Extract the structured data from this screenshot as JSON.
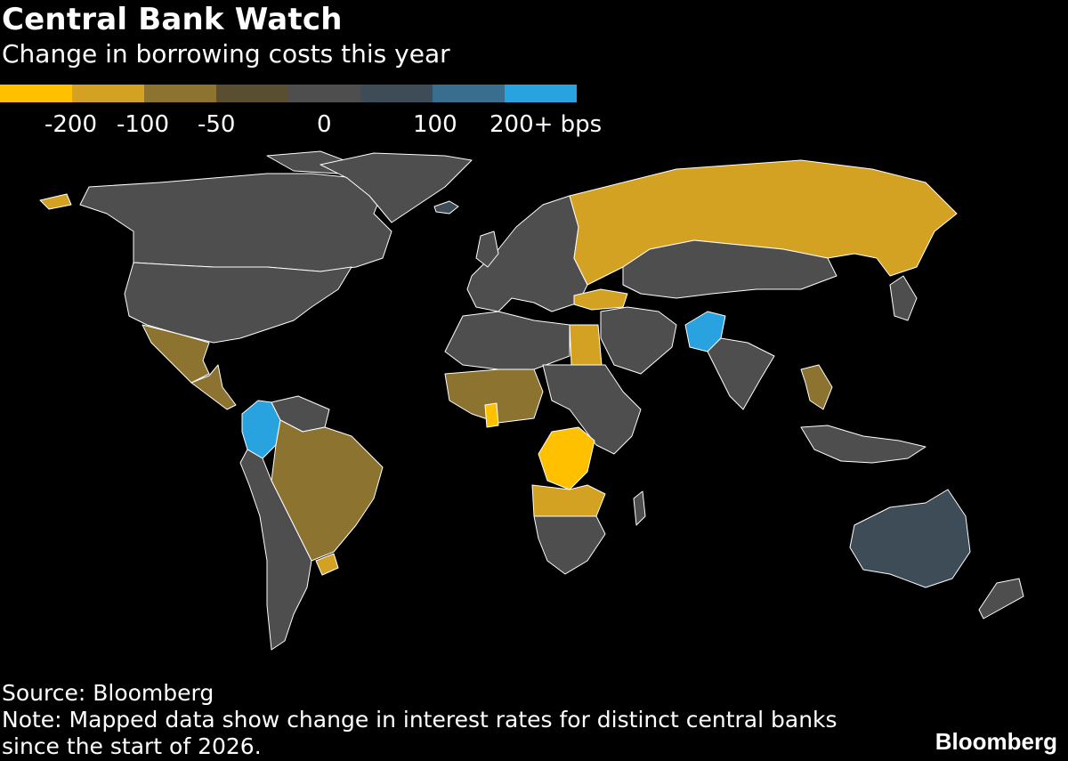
{
  "title": "Central Bank Watch",
  "subtitle": "Change in borrowing costs this year",
  "legend": {
    "colors": [
      "#ffc000",
      "#d4a223",
      "#8c7330",
      "#5a4e30",
      "#4e4e4e",
      "#3d4c57",
      "#3a6e8e",
      "#29a3e0"
    ],
    "labels": [
      "-200",
      "-100",
      "-50",
      "0",
      "100",
      "200+ bps"
    ]
  },
  "palette": {
    "background": "#000000",
    "no_data": "#000000",
    "border": "#ffffff"
  },
  "map_data": {
    "regions": [
      {
        "name": "Alaska & Canada",
        "class": "0"
      },
      {
        "name": "United States",
        "class": "0"
      },
      {
        "name": "Mexico",
        "class": "-50"
      },
      {
        "name": "Central America",
        "class": "-50"
      },
      {
        "name": "Colombia",
        "class": "200+"
      },
      {
        "name": "Brazil",
        "class": "-50"
      },
      {
        "name": "South America west",
        "class": "0"
      },
      {
        "name": "Uruguay",
        "class": "-100"
      },
      {
        "name": "Greenland",
        "class": "0"
      },
      {
        "name": "Iceland",
        "class": "100"
      },
      {
        "name": "Europe",
        "class": "0"
      },
      {
        "name": "Russia",
        "class": "-100"
      },
      {
        "name": "Turkey",
        "class": "-100"
      },
      {
        "name": "Egypt",
        "class": "-100"
      },
      {
        "name": "West Africa",
        "class": "-50"
      },
      {
        "name": "Ghana",
        "class": "-200"
      },
      {
        "name": "DR Congo",
        "class": "-200"
      },
      {
        "name": "Angola & Zambia",
        "class": "-100"
      },
      {
        "name": "East Africa",
        "class": "0"
      },
      {
        "name": "Southern Africa",
        "class": "0"
      },
      {
        "name": "Pakistan",
        "class": "200+"
      },
      {
        "name": "Kazakhstan & Mongolia",
        "class": "0"
      },
      {
        "name": "India",
        "class": "0"
      },
      {
        "name": "Thailand",
        "class": "-50"
      },
      {
        "name": "Indonesia",
        "class": "0"
      },
      {
        "name": "Japan",
        "class": "0"
      },
      {
        "name": "Australia",
        "class": "100"
      },
      {
        "name": "New Zealand",
        "class": "0"
      }
    ]
  },
  "footer": {
    "source": "Source: Bloomberg",
    "note": "Note: Mapped data show change in interest rates for distinct central banks since the start of 2026.",
    "brand": "Bloomberg"
  }
}
